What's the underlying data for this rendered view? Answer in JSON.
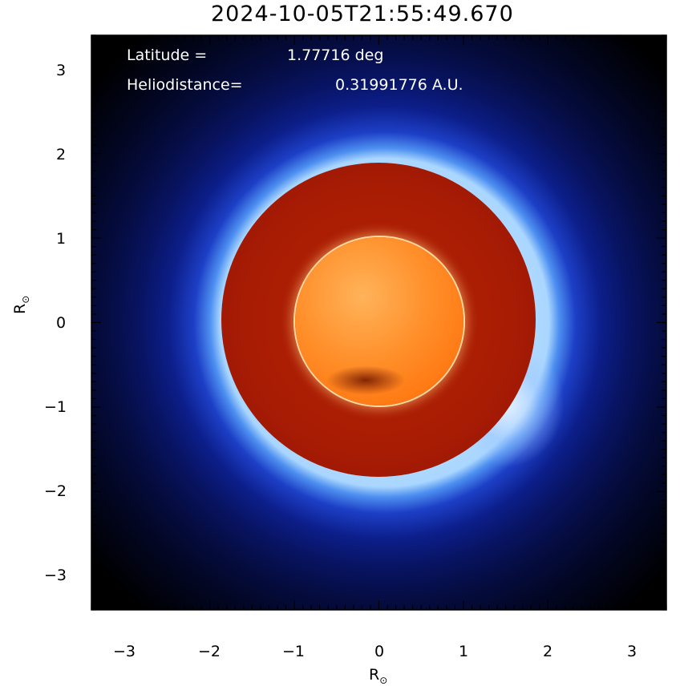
{
  "title": "2024-10-05T21:55:49.670",
  "annotations": {
    "latitude_label": "Latitude =",
    "latitude_value": "1.77716 deg",
    "heliodistance_label": "Heliodistance=",
    "heliodistance_value": "0.31991776 A.U."
  },
  "axes": {
    "x_label": "R",
    "y_label": "R",
    "label_subscript": "⊙",
    "x_ticks": [
      "−3",
      "−2",
      "−1",
      "0",
      "1",
      "2",
      "3"
    ],
    "y_ticks": [
      "3",
      "2",
      "1",
      "0",
      "−1",
      "−2",
      "−3"
    ],
    "range": [
      -3.4,
      3.4
    ]
  },
  "colors": {
    "background": "#000000",
    "corona": "#1d3fc6",
    "occulter": "#a81c04",
    "sun": "#ff8f2a"
  }
}
